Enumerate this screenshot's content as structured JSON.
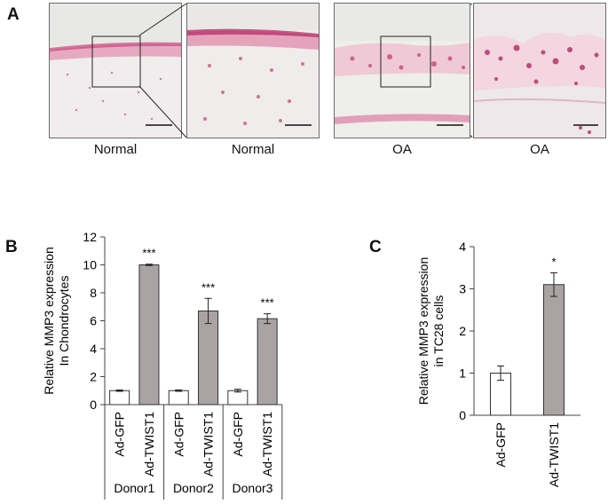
{
  "panel_a": {
    "letter": "A",
    "images": [
      {
        "caption": "Normal",
        "tissue": "normal-overview"
      },
      {
        "caption": "Normal",
        "tissue": "normal-zoom"
      },
      {
        "caption": "OA",
        "tissue": "oa-overview"
      },
      {
        "caption": "OA",
        "tissue": "oa-zoom"
      }
    ],
    "colors": {
      "stain": "#c9477a",
      "background": "#eeeeea",
      "cartilage": "#f4e7ea"
    }
  },
  "chart_data": [
    {
      "panel": "B",
      "type": "bar",
      "ylabel_lines": [
        "Relative MMP3 expression",
        "In Chondrocytes"
      ],
      "ylim": [
        0,
        12
      ],
      "yticks": [
        "0",
        "2",
        "4",
        "6",
        "8",
        "10",
        "12"
      ],
      "categories": [
        "Ad-GFP",
        "Ad-TWIST1",
        "Ad-GFP",
        "Ad-TWIST1",
        "Ad-GFP",
        "Ad-TWIST1"
      ],
      "values": [
        1.0,
        10.0,
        1.0,
        6.7,
        1.0,
        6.15
      ],
      "errors": [
        0.05,
        0.05,
        0.05,
        0.9,
        0.1,
        0.35
      ],
      "significance": [
        "",
        "***",
        "",
        "***",
        "",
        "***"
      ],
      "groups": [
        "Donor1",
        "Donor2",
        "Donor3"
      ],
      "colors": [
        "#ffffff",
        "#aaa3a3",
        "#ffffff",
        "#aaa3a3",
        "#ffffff",
        "#aaa3a3"
      ]
    },
    {
      "panel": "C",
      "type": "bar",
      "ylabel_lines": [
        "Relative MMP3 expression",
        "in TC28 cells"
      ],
      "ylim": [
        0,
        4
      ],
      "yticks": [
        "0",
        "1",
        "2",
        "3",
        "4"
      ],
      "categories": [
        "Ad-GFP",
        "Ad-TWIST1"
      ],
      "values": [
        1.0,
        3.1
      ],
      "errors": [
        0.17,
        0.28
      ],
      "significance": [
        "",
        "*"
      ],
      "colors": [
        "#ffffff",
        "#aaa3a3"
      ]
    }
  ]
}
